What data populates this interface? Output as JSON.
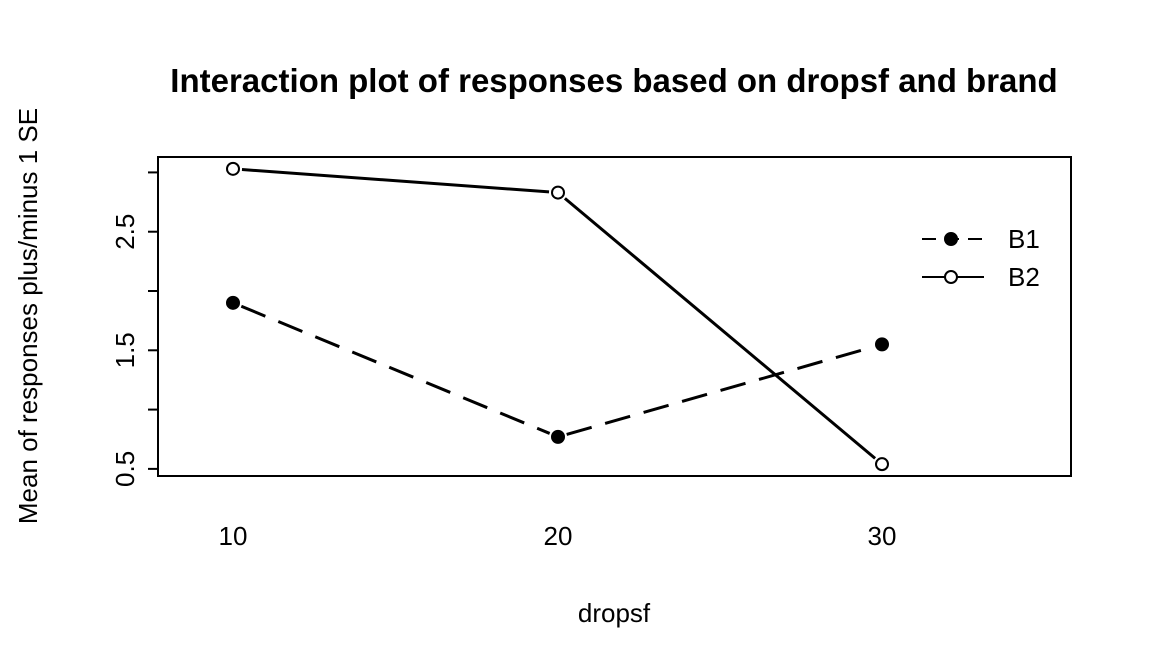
{
  "chart_data": {
    "type": "line",
    "title": "Interaction plot of responses based on dropsf and brand",
    "xlabel": "dropsf",
    "ylabel": "Mean of  responses plus/minus 1 SE",
    "categories": [
      "10",
      "20",
      "30"
    ],
    "yticks": [
      "0.5",
      "1.5",
      "2.5"
    ],
    "ylim": [
      0.44,
      3.13
    ],
    "grid": false,
    "legend_position": "top-right",
    "series": [
      {
        "name": "B1",
        "values": [
          1.9,
          0.77,
          1.55
        ],
        "line": "dashed",
        "marker": "filled-circle",
        "color": "#000000"
      },
      {
        "name": "B2",
        "values": [
          3.03,
          2.83,
          0.54
        ],
        "line": "solid",
        "marker": "open-circle",
        "color": "#000000"
      }
    ]
  }
}
